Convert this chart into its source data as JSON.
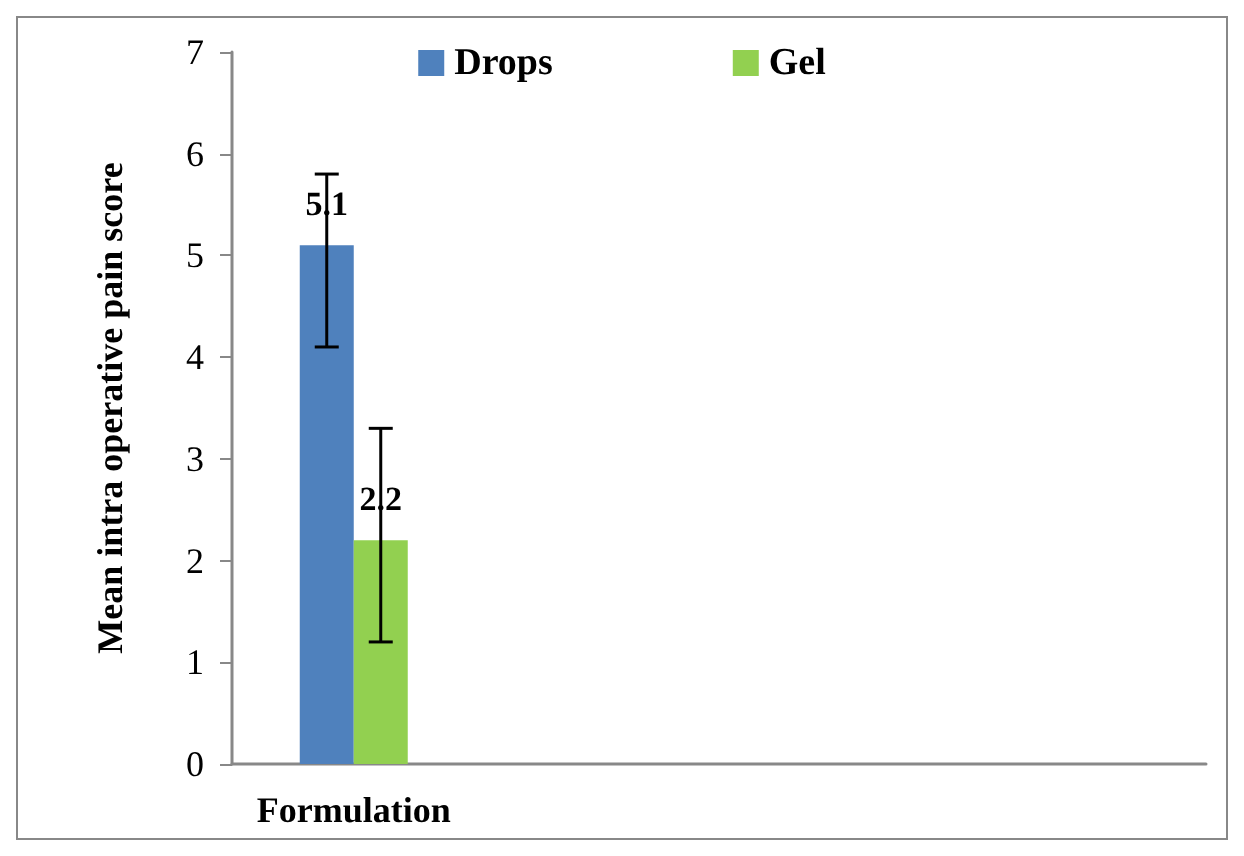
{
  "chart_data": {
    "type": "bar",
    "ylabel": "Mean intra operative pain score",
    "categories": [
      "Formulation",
      null,
      null,
      null
    ],
    "series": [
      {
        "name": "Drops",
        "color": "#4f81bd",
        "values": [
          5.1,
          null,
          null,
          null
        ],
        "errors": [
          [
            4.1,
            5.8
          ],
          null,
          null,
          null
        ]
      },
      {
        "name": "Gel",
        "color": "#92d050",
        "values": [
          2.2,
          null,
          null,
          null
        ],
        "errors": [
          [
            1.2,
            3.3
          ],
          null,
          null,
          null
        ]
      }
    ],
    "ylim": [
      0,
      7
    ],
    "yticks": [
      0,
      1,
      2,
      3,
      4,
      5,
      6,
      7
    ],
    "grid": false,
    "legend": "top",
    "data_labels": true
  }
}
